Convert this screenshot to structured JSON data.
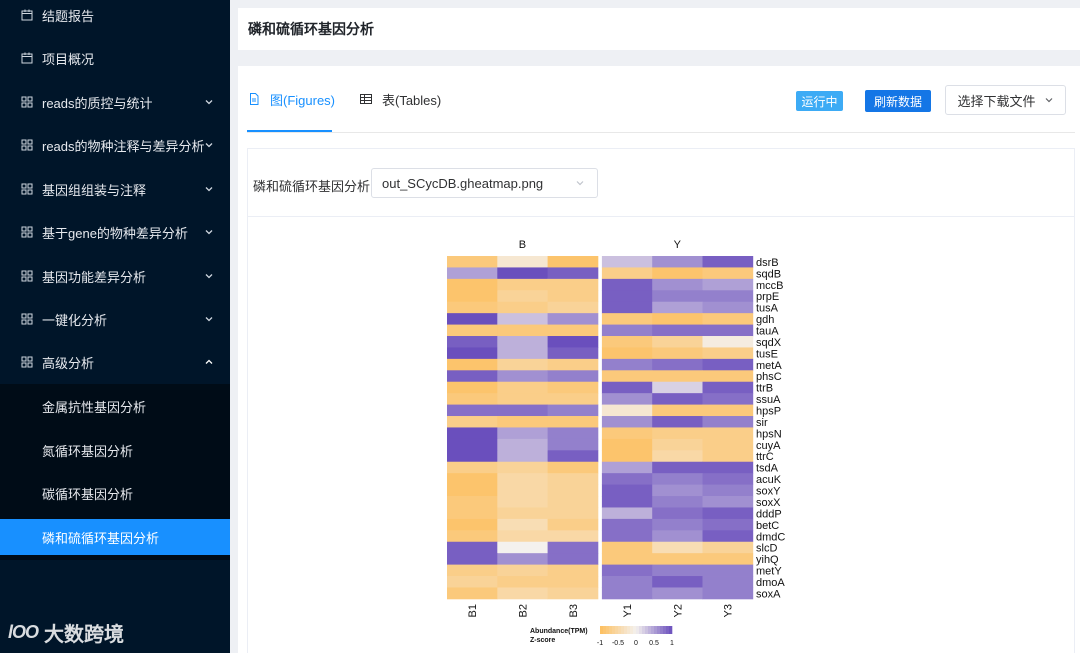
{
  "sidebar": {
    "items": [
      {
        "label": "结题报告",
        "icon": "calendar-icon",
        "chevron": false
      },
      {
        "label": "项目概况",
        "icon": "calendar-icon",
        "chevron": false
      },
      {
        "label": "reads的质控与统计",
        "icon": "grid-icon",
        "chevron": "down"
      },
      {
        "label": "reads的物种注释与差异分析",
        "icon": "grid-icon",
        "chevron": "down"
      },
      {
        "label": "基因组组装与注释",
        "icon": "grid-icon",
        "chevron": "down"
      },
      {
        "label": "基于gene的物种差异分析",
        "icon": "grid-icon",
        "chevron": "down"
      },
      {
        "label": "基因功能差异分析",
        "icon": "grid-icon",
        "chevron": "down"
      },
      {
        "label": "一键化分析",
        "icon": "grid-icon",
        "chevron": "down"
      },
      {
        "label": "高级分析",
        "icon": "grid-icon",
        "chevron": "up"
      }
    ],
    "subitems": [
      {
        "label": "金属抗性基因分析",
        "active": false
      },
      {
        "label": "氮循环基因分析",
        "active": false
      },
      {
        "label": "碳循环基因分析",
        "active": false
      },
      {
        "label": "磷和硫循环基因分析",
        "active": true
      }
    ],
    "watermark": {
      "mark": "lOO",
      "text": "大数跨境"
    }
  },
  "header": {
    "title": "磷和硫循环基因分析"
  },
  "tabs": {
    "figures": "图(Figures)",
    "tables": "表(Tables)"
  },
  "toolbar": {
    "running": "运行中",
    "refresh": "刷新数据",
    "download": "选择下载文件"
  },
  "selector": {
    "label": "磷和硫循环基因分析",
    "value": "out_SCycDB.gheatmap.png"
  },
  "colors": {
    "accent": "#1890ff",
    "sidebar_bg": "#001529",
    "low": "#fdbf5e",
    "mid": "#f4f1ee",
    "high": "#6a4fbd"
  },
  "heatmap": {
    "groups": [
      "B",
      "Y"
    ],
    "columns": [
      "B1",
      "B2",
      "B3",
      "Y1",
      "Y2",
      "Y3"
    ],
    "rows": [
      "dsrB",
      "sqdB",
      "mccB",
      "prpE",
      "tusA",
      "gdh",
      "tauA",
      "sqdX",
      "tusE",
      "metA",
      "phsC",
      "ttrB",
      "ssuA",
      "hpsP",
      "sir",
      "hpsN",
      "cuyA",
      "ttrC",
      "tsdA",
      "acuK",
      "soxY",
      "soxX",
      "dddP",
      "betC",
      "dmdC",
      "slcD",
      "yihQ",
      "metY",
      "dmoA",
      "soxA"
    ],
    "zscores": [
      [
        -0.8,
        -0.2,
        -0.9,
        0.3,
        0.6,
        0.9
      ],
      [
        0.5,
        1.0,
        0.9,
        -0.7,
        -0.9,
        -0.8
      ],
      [
        -0.9,
        -0.7,
        -0.7,
        0.9,
        0.6,
        0.5
      ],
      [
        -0.9,
        -0.6,
        -0.7,
        0.9,
        0.7,
        0.7
      ],
      [
        -0.8,
        -0.7,
        -0.6,
        0.9,
        0.5,
        0.6
      ],
      [
        1.0,
        0.3,
        0.6,
        -0.8,
        -0.9,
        -0.8
      ],
      [
        -0.8,
        -0.8,
        -0.8,
        0.7,
        0.8,
        0.8
      ],
      [
        0.9,
        0.4,
        1.0,
        -0.8,
        -0.6,
        -0.1
      ],
      [
        1.0,
        0.4,
        0.9,
        -0.9,
        -0.8,
        -0.7
      ],
      [
        -0.9,
        -0.6,
        -0.7,
        0.7,
        0.8,
        0.9
      ],
      [
        0.9,
        0.6,
        0.7,
        -0.8,
        -0.8,
        -0.8
      ],
      [
        -0.9,
        -0.7,
        -0.8,
        0.9,
        0.2,
        0.9
      ],
      [
        -0.8,
        -0.7,
        -0.7,
        0.6,
        0.9,
        0.8
      ],
      [
        0.8,
        0.8,
        0.7,
        -0.2,
        -0.8,
        -0.8
      ],
      [
        -0.7,
        -0.8,
        -0.8,
        0.6,
        0.9,
        0.7
      ],
      [
        1.0,
        0.5,
        0.7,
        -0.8,
        -0.7,
        -0.7
      ],
      [
        1.0,
        0.4,
        0.7,
        -0.9,
        -0.6,
        -0.7
      ],
      [
        1.0,
        0.4,
        0.9,
        -0.9,
        -0.5,
        -0.7
      ],
      [
        -0.7,
        -0.6,
        -0.8,
        0.5,
        0.9,
        0.9
      ],
      [
        -0.9,
        -0.5,
        -0.6,
        0.8,
        0.7,
        0.8
      ],
      [
        -0.9,
        -0.5,
        -0.6,
        0.9,
        0.6,
        0.7
      ],
      [
        -0.8,
        -0.5,
        -0.6,
        0.9,
        0.7,
        0.6
      ],
      [
        -0.8,
        -0.6,
        -0.6,
        0.4,
        0.8,
        0.9
      ],
      [
        -0.9,
        -0.4,
        -0.7,
        0.8,
        0.7,
        0.8
      ],
      [
        -0.8,
        -0.5,
        -0.5,
        0.8,
        0.6,
        0.9
      ],
      [
        0.9,
        0.0,
        0.8,
        -0.8,
        -0.4,
        -0.6
      ],
      [
        0.9,
        0.6,
        0.8,
        -0.8,
        -0.8,
        -0.8
      ],
      [
        -0.7,
        -0.6,
        -0.7,
        0.8,
        0.7,
        0.7
      ],
      [
        -0.6,
        -0.7,
        -0.7,
        0.7,
        0.9,
        0.7
      ],
      [
        -0.8,
        -0.5,
        -0.6,
        0.7,
        0.6,
        0.7
      ]
    ],
    "legend_title": "Abundance(TPM)",
    "legend_subtitle": "Z-score",
    "legend_ticks": [
      "-1",
      "-0.5",
      "0",
      "0.5",
      "1"
    ]
  }
}
